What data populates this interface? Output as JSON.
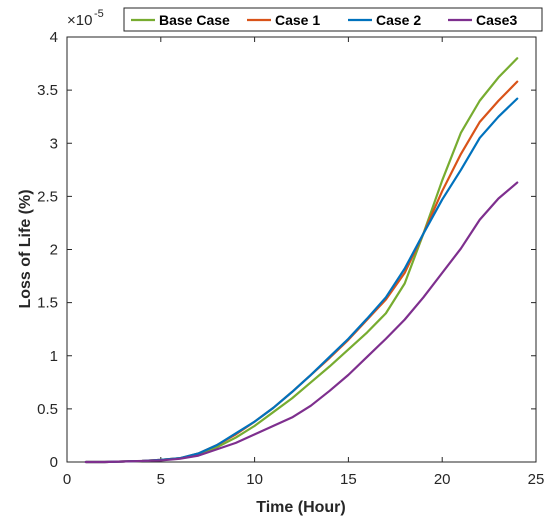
{
  "chart_data": {
    "type": "line",
    "xlabel": "Time (Hour)",
    "ylabel": "Loss of Life (%)",
    "y_exponent_label": "×10",
    "y_exponent_power": "-5",
    "xlim": [
      0,
      25
    ],
    "ylim": [
      0,
      4
    ],
    "xticks": [
      0,
      5,
      10,
      15,
      20,
      25
    ],
    "xtick_labels": [
      "0",
      "5",
      "10",
      "15",
      "20",
      "25"
    ],
    "yticks": [
      0,
      0.5,
      1,
      1.5,
      2,
      2.5,
      3,
      3.5,
      4
    ],
    "ytick_labels": [
      "0",
      "0.5",
      "1",
      "1.5",
      "2",
      "2.5",
      "3",
      "3.5",
      "4"
    ],
    "grid": false,
    "legend_position": "top-right",
    "x": [
      1,
      2,
      3,
      4,
      5,
      6,
      7,
      8,
      9,
      10,
      11,
      12,
      13,
      14,
      15,
      16,
      17,
      18,
      19,
      20,
      21,
      22,
      23,
      24
    ],
    "series": [
      {
        "name": "Base Case",
        "color": "#77ac30",
        "values": [
          0,
          0,
          0.005,
          0.01,
          0.02,
          0.035,
          0.07,
          0.14,
          0.23,
          0.34,
          0.47,
          0.6,
          0.75,
          0.9,
          1.06,
          1.22,
          1.4,
          1.68,
          2.15,
          2.65,
          3.1,
          3.4,
          3.62,
          3.8
        ]
      },
      {
        "name": "Case 1",
        "color": "#d95319",
        "values": [
          0,
          0,
          0.005,
          0.01,
          0.02,
          0.035,
          0.08,
          0.16,
          0.26,
          0.38,
          0.51,
          0.66,
          0.82,
          0.98,
          1.15,
          1.34,
          1.53,
          1.78,
          2.15,
          2.55,
          2.9,
          3.2,
          3.4,
          3.58
        ]
      },
      {
        "name": "Case 2",
        "color": "#0072bd",
        "values": [
          0,
          0,
          0.005,
          0.01,
          0.02,
          0.035,
          0.08,
          0.16,
          0.27,
          0.38,
          0.51,
          0.66,
          0.82,
          0.99,
          1.16,
          1.35,
          1.55,
          1.82,
          2.15,
          2.47,
          2.75,
          3.05,
          3.25,
          3.42
        ]
      },
      {
        "name": "Case3",
        "color": "#7e2f8e",
        "values": [
          0,
          0,
          0.005,
          0.01,
          0.015,
          0.03,
          0.06,
          0.12,
          0.18,
          0.26,
          0.34,
          0.42,
          0.53,
          0.67,
          0.82,
          0.99,
          1.16,
          1.34,
          1.55,
          1.78,
          2.01,
          2.28,
          2.48,
          2.63
        ]
      }
    ]
  }
}
